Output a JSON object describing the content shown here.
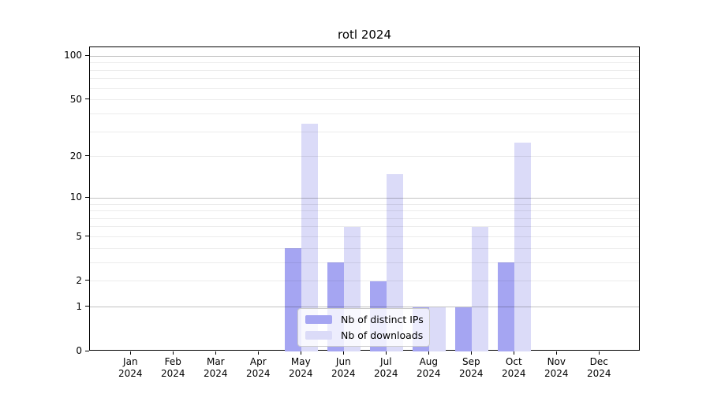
{
  "title": "rotl 2024",
  "chart_data": {
    "type": "bar",
    "title": "rotl 2024",
    "categories": [
      "Jan 2024",
      "Feb 2024",
      "Mar 2024",
      "Apr 2024",
      "May 2024",
      "Jun 2024",
      "Jul 2024",
      "Aug 2024",
      "Sep 2024",
      "Oct 2024",
      "Nov 2024",
      "Dec 2024"
    ],
    "series": [
      {
        "name": "Nb of distinct IPs",
        "color": "#a5a5f2",
        "values": [
          0,
          0,
          0,
          0,
          4,
          3,
          2,
          1,
          1,
          3,
          0,
          0
        ]
      },
      {
        "name": "Nb of downloads",
        "color": "#dbdbf8",
        "values": [
          0,
          0,
          0,
          0,
          34,
          6,
          15,
          1,
          6,
          25,
          0,
          0
        ]
      }
    ],
    "y_scale": "log1p",
    "ylim": [
      0,
      115
    ],
    "y_tick_labels": [
      "0",
      "1",
      "2",
      "5",
      "10",
      "20",
      "50",
      "100"
    ],
    "y_dark_gridlines": [
      1,
      10,
      100
    ],
    "y_minor_gridlines": [
      3,
      4,
      6,
      7,
      8,
      9,
      30,
      40,
      60,
      70,
      80,
      90
    ],
    "grid": true,
    "legend_position": "lower center"
  }
}
